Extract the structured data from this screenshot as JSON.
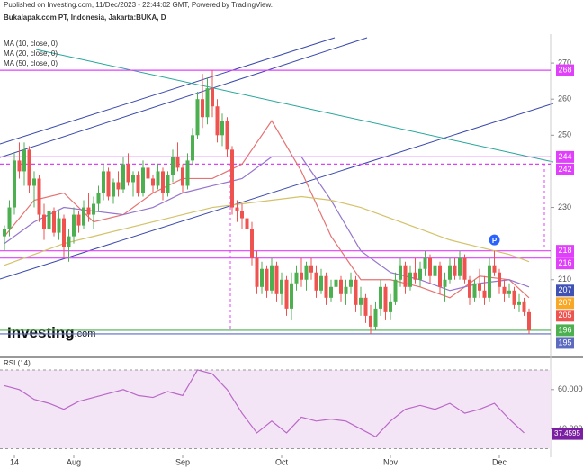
{
  "chart_data": {
    "type": "candlestick",
    "published": "Published on Investing.com, 11/Dec/2023 - 22:44:02 GMT, Powered by TradingView.",
    "title": "Bukalapak.com PT, Indonesia, Jakarta:BUKA, D",
    "logo": "Investing",
    "logo_suffix": ".com",
    "up_color": "#4caf50",
    "down_color": "#ef5350",
    "ylim": [
      189,
      278
    ],
    "yticks": [
      210,
      230,
      250,
      260,
      270
    ],
    "xticks": [
      {
        "value": 2,
        "label": "14"
      },
      {
        "value": 14,
        "label": "Aug"
      },
      {
        "value": 36,
        "label": "Sep"
      },
      {
        "value": 56,
        "label": "Oct"
      },
      {
        "value": 78,
        "label": "Nov"
      },
      {
        "value": 100,
        "label": "Dec"
      }
    ],
    "candles": [
      [
        222,
        225,
        218,
        224
      ],
      [
        224,
        232,
        222,
        230
      ],
      [
        230,
        245,
        228,
        243
      ],
      [
        243,
        248,
        238,
        240
      ],
      [
        240,
        248,
        236,
        246
      ],
      [
        246,
        247,
        234,
        236
      ],
      [
        236,
        240,
        230,
        238
      ],
      [
        238,
        239,
        226,
        228
      ],
      [
        228,
        231,
        221,
        224
      ],
      [
        224,
        231,
        222,
        229
      ],
      [
        229,
        230,
        222,
        223
      ],
      [
        223,
        229,
        221,
        227
      ],
      [
        227,
        228,
        216,
        219
      ],
      [
        219,
        224,
        215,
        222
      ],
      [
        222,
        230,
        220,
        228
      ],
      [
        228,
        229,
        223,
        225
      ],
      [
        225,
        232,
        224,
        230
      ],
      [
        230,
        234,
        226,
        228
      ],
      [
        228,
        233,
        224,
        231
      ],
      [
        231,
        236,
        229,
        234
      ],
      [
        234,
        242,
        232,
        240
      ],
      [
        240,
        241,
        232,
        233
      ],
      [
        233,
        238,
        231,
        237
      ],
      [
        237,
        240,
        233,
        235
      ],
      [
        235,
        244,
        234,
        242
      ],
      [
        242,
        245,
        236,
        237
      ],
      [
        237,
        240,
        233,
        239
      ],
      [
        239,
        240,
        233,
        234
      ],
      [
        234,
        243,
        233,
        241
      ],
      [
        241,
        244,
        236,
        238
      ],
      [
        238,
        239,
        234,
        236
      ],
      [
        236,
        242,
        235,
        240
      ],
      [
        240,
        241,
        232,
        234
      ],
      [
        234,
        240,
        233,
        239
      ],
      [
        239,
        246,
        237,
        244
      ],
      [
        244,
        248,
        240,
        241
      ],
      [
        241,
        242,
        234,
        236
      ],
      [
        236,
        245,
        235,
        243
      ],
      [
        243,
        252,
        242,
        250
      ],
      [
        250,
        262,
        249,
        260
      ],
      [
        260,
        267,
        252,
        255
      ],
      [
        255,
        266,
        253,
        263
      ],
      [
        263,
        268,
        255,
        258
      ],
      [
        258,
        260,
        248,
        250
      ],
      [
        250,
        256,
        247,
        254
      ],
      [
        254,
        255,
        244,
        246
      ],
      [
        246,
        247,
        228,
        230
      ],
      [
        230,
        232,
        226,
        229
      ],
      [
        229,
        231,
        224,
        227
      ],
      [
        227,
        229,
        222,
        224
      ],
      [
        224,
        226,
        214,
        216
      ],
      [
        216,
        218,
        206,
        208
      ],
      [
        208,
        215,
        206,
        213
      ],
      [
        213,
        214,
        205,
        207
      ],
      [
        207,
        216,
        206,
        214
      ],
      [
        214,
        215,
        204,
        206
      ],
      [
        206,
        212,
        203,
        210
      ],
      [
        210,
        211,
        200,
        202
      ],
      [
        202,
        212,
        199,
        209
      ],
      [
        209,
        214,
        207,
        212
      ],
      [
        212,
        216,
        208,
        210
      ],
      [
        210,
        215,
        207,
        214
      ],
      [
        214,
        216,
        210,
        212
      ],
      [
        212,
        214,
        205,
        207
      ],
      [
        207,
        213,
        206,
        211
      ],
      [
        211,
        212,
        203,
        205
      ],
      [
        205,
        210,
        204,
        208
      ],
      [
        208,
        212,
        205,
        210
      ],
      [
        210,
        211,
        204,
        206
      ],
      [
        206,
        210,
        203,
        208
      ],
      [
        208,
        212,
        206,
        210
      ],
      [
        210,
        211,
        201,
        203
      ],
      [
        203,
        208,
        200,
        205
      ],
      [
        205,
        206,
        198,
        200
      ],
      [
        200,
        203,
        195,
        197
      ],
      [
        197,
        204,
        196,
        202
      ],
      [
        202,
        210,
        200,
        208
      ],
      [
        208,
        209,
        199,
        201
      ],
      [
        201,
        206,
        199,
        204
      ],
      [
        204,
        212,
        203,
        210
      ],
      [
        210,
        216,
        208,
        214
      ],
      [
        214,
        215,
        206,
        208
      ],
      [
        208,
        214,
        207,
        212
      ],
      [
        212,
        216,
        209,
        210
      ],
      [
        210,
        215,
        208,
        213
      ],
      [
        213,
        218,
        211,
        216
      ],
      [
        216,
        217,
        209,
        211
      ],
      [
        211,
        215,
        209,
        214
      ],
      [
        214,
        215,
        206,
        208
      ],
      [
        208,
        212,
        204,
        210
      ],
      [
        210,
        216,
        209,
        214
      ],
      [
        214,
        216,
        210,
        211
      ],
      [
        211,
        218,
        210,
        216
      ],
      [
        216,
        217,
        209,
        210
      ],
      [
        210,
        211,
        203,
        205
      ],
      [
        205,
        210,
        204,
        209
      ],
      [
        209,
        213,
        205,
        207
      ],
      [
        207,
        211,
        203,
        205
      ],
      [
        205,
        216,
        204,
        214
      ],
      [
        214,
        218,
        211,
        212
      ],
      [
        212,
        213,
        206,
        208
      ],
      [
        208,
        210,
        204,
        206
      ],
      [
        206,
        209,
        205,
        207
      ],
      [
        207,
        208,
        202,
        203
      ],
      [
        203,
        206,
        201,
        204
      ],
      [
        204,
        205,
        200,
        201
      ],
      [
        201,
        202,
        195,
        196
      ]
    ],
    "series": [
      {
        "name": "MA (10, close, 0)",
        "color": "#e57373",
        "x": [
          0,
          6,
          12,
          18,
          24,
          30,
          36,
          42,
          48,
          54,
          60,
          66,
          72,
          78,
          84,
          90,
          96,
          102,
          106
        ],
        "values": [
          222,
          232,
          234,
          226,
          228,
          234,
          238,
          238,
          242,
          254,
          240,
          222,
          210,
          210,
          208,
          205,
          211,
          210,
          205
        ]
      },
      {
        "name": "MA (20, close, 0)",
        "color": "#9575cd",
        "x": [
          0,
          6,
          12,
          18,
          24,
          30,
          36,
          42,
          48,
          54,
          60,
          66,
          72,
          78,
          84,
          90,
          96,
          102,
          106
        ],
        "values": [
          220,
          226,
          230,
          229,
          228,
          230,
          234,
          236,
          238,
          244,
          244,
          232,
          218,
          212,
          210,
          207,
          209,
          210,
          208
        ]
      },
      {
        "name": "MA (50, close, 0)",
        "color": "#d4c26a",
        "x": [
          0,
          6,
          12,
          18,
          24,
          30,
          36,
          42,
          48,
          54,
          60,
          66,
          72,
          78,
          84,
          90,
          96,
          102,
          106
        ],
        "values": [
          214,
          217,
          220,
          222,
          224,
          226,
          228,
          230,
          231,
          232,
          233,
          232,
          230,
          227,
          224,
          221,
          219,
          217,
          215
        ]
      }
    ],
    "levels": [
      {
        "value": 268,
        "color": "#e040fb"
      },
      {
        "value": 244,
        "color": "#e040fb"
      },
      {
        "value": 242,
        "color": "#e040fb"
      },
      {
        "value": 218,
        "color": "#e040fb"
      },
      {
        "value": 216,
        "color": "#e040fb"
      },
      {
        "value": 196,
        "color": "#4caf50"
      },
      {
        "value": 195,
        "color": "#5c6bc0"
      }
    ],
    "price_labels": [
      {
        "value": 268,
        "color": "#e040fb"
      },
      {
        "value": 244,
        "color": "#e040fb"
      },
      {
        "value": 242,
        "color": "#e040fb"
      },
      {
        "value": 218,
        "color": "#e040fb"
      },
      {
        "value": 216,
        "color": "#e040fb"
      },
      {
        "value": 207,
        "color": "#3f51b5"
      },
      {
        "value": 207,
        "color": "#f9a825"
      },
      {
        "value": 205,
        "color": "#ef5350"
      },
      {
        "value": 196,
        "color": "#4caf50"
      },
      {
        "value": 195,
        "color": "#5c6bc0"
      }
    ],
    "marker": "P",
    "rsi": {
      "name": "RSI (14)",
      "color": "#ba68c8",
      "ylim": [
        27,
        75
      ],
      "band": [
        30,
        70
      ],
      "yticks": [
        {
          "value": 60,
          "label": "60.0000"
        },
        {
          "value": 40,
          "label": "40.0000"
        }
      ],
      "x": [
        0,
        3,
        6,
        9,
        12,
        15,
        18,
        21,
        24,
        27,
        30,
        33,
        36,
        39,
        42,
        45,
        48,
        51,
        54,
        57,
        60,
        63,
        66,
        69,
        72,
        75,
        78,
        81,
        84,
        87,
        90,
        93,
        96,
        99,
        102,
        105
      ],
      "values": [
        62,
        60,
        55,
        53,
        50,
        54,
        56,
        58,
        60,
        57,
        56,
        59,
        57,
        70,
        68,
        60,
        48,
        38,
        44,
        38,
        46,
        44,
        45,
        44,
        40,
        36,
        44,
        50,
        52,
        50,
        53,
        48,
        50,
        53,
        45,
        38
      ],
      "last": 37.4595
    }
  }
}
